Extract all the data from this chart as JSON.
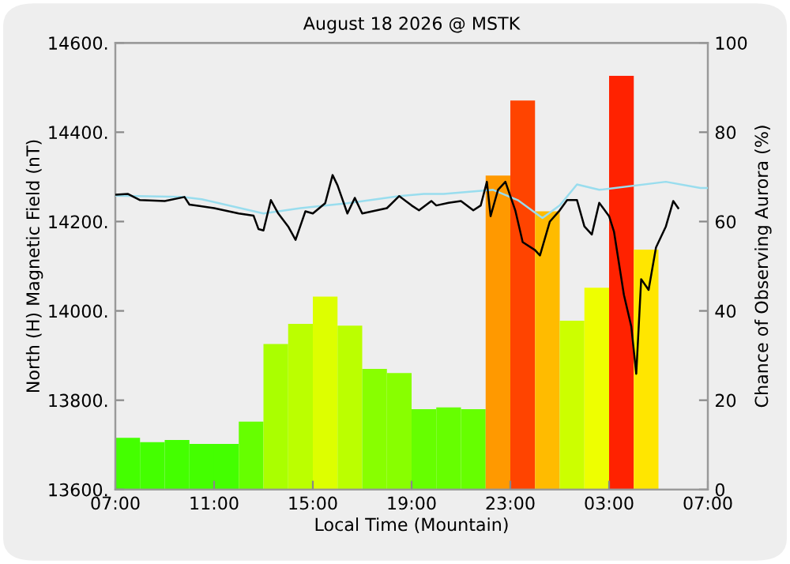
{
  "chart_data": {
    "type": "line",
    "title": "August 18 2026 @ MSTK",
    "xlabel": "Local Time (Mountain)",
    "ylabel": "North (H) Magnetic Field (nT)",
    "y2label": "Chance of Observing Aurora (%)",
    "xlim": [
      "2026-08-18T07:00",
      "2026-08-19T07:00"
    ],
    "xticks": [
      {
        "value": "2026-08-18T07:00",
        "label": "07:00"
      },
      {
        "value": "2026-08-18T11:00",
        "label": "11:00"
      },
      {
        "value": "2026-08-18T15:00",
        "label": "15:00"
      },
      {
        "value": "2026-08-18T19:00",
        "label": "19:00"
      },
      {
        "value": "2026-08-18T23:00",
        "label": "23:00"
      },
      {
        "value": "2026-08-19T03:00",
        "label": "03:00"
      },
      {
        "value": "2026-08-19T07:00",
        "label": "07:00"
      }
    ],
    "ylim": [
      13600,
      14600
    ],
    "yticks": [
      {
        "value": 13600,
        "label": "13600."
      },
      {
        "value": 13800,
        "label": "13800."
      },
      {
        "value": 14000,
        "label": "14000."
      },
      {
        "value": 14200,
        "label": "14200."
      },
      {
        "value": 14400,
        "label": "14400."
      },
      {
        "value": 14600,
        "label": "14600."
      }
    ],
    "y2lim": [
      0,
      100
    ],
    "y2ticks": [
      0,
      20,
      40,
      60,
      80,
      100
    ],
    "series": [
      {
        "type": "bar",
        "axis": "y2",
        "x": [
          "2026-08-18T07:30",
          "2026-08-18T08:30",
          "2026-08-18T09:30",
          "2026-08-18T10:30",
          "2026-08-18T11:30",
          "2026-08-18T12:30",
          "2026-08-18T13:30",
          "2026-08-18T14:30",
          "2026-08-18T15:30",
          "2026-08-18T16:30",
          "2026-08-18T17:30",
          "2026-08-18T18:30",
          "2026-08-18T19:30",
          "2026-08-18T20:30",
          "2026-08-18T21:30",
          "2026-08-18T22:30",
          "2026-08-18T23:30",
          "2026-08-19T00:30",
          "2026-08-19T01:30",
          "2026-08-19T02:30",
          "2026-08-19T03:30",
          "2026-08-19T04:30"
        ],
        "values": [
          11.6,
          10.6,
          11.1,
          10.2,
          10.2,
          15.2,
          32.6,
          37.1,
          43.2,
          36.7,
          27.0,
          26.1,
          18.0,
          18.4,
          18.0,
          70.3,
          87.1,
          62.3,
          37.8,
          45.2,
          92.6,
          53.7
        ],
        "colors": [
          "#44ff00",
          "#44ff00",
          "#44ff00",
          "#44ff00",
          "#44ff00",
          "#66ff00",
          "#aaff00",
          "#bbff00",
          "#ddff00",
          "#bbff00",
          "#88ff00",
          "#88ff00",
          "#66ff00",
          "#66ff00",
          "#66ff00",
          "#ff9900",
          "#ff4400",
          "#ffbb00",
          "#ccff00",
          "#eeff00",
          "#ff2200",
          "#ffe600"
        ]
      },
      {
        "axis": "y",
        "color": "#99ddee",
        "x": [
          "2026-08-18T07:00",
          "2026-08-18T09:42",
          "2026-08-18T10:30",
          "2026-08-18T13:00",
          "2026-08-18T14:30",
          "2026-08-18T16:24",
          "2026-08-18T18:30",
          "2026-08-18T19:30",
          "2026-08-18T20:18",
          "2026-08-18T22:18",
          "2026-08-18T23:18",
          "2026-08-19T00:18",
          "2026-08-19T01:00",
          "2026-08-19T01:42",
          "2026-08-19T02:36",
          "2026-08-19T05:18",
          "2026-08-19T06:42",
          "2026-08-19T07:00"
        ],
        "values": [
          14258,
          14255,
          14250,
          14218,
          14230,
          14241,
          14257,
          14262,
          14262,
          14271,
          14248,
          14208,
          14236,
          14283,
          14271,
          14289,
          14275,
          14275
        ]
      },
      {
        "axis": "y",
        "color": "#000000",
        "x": [
          "2026-08-18T07:00",
          "2026-08-18T07:30",
          "2026-08-18T08:00",
          "2026-08-18T09:00",
          "2026-08-18T09:48",
          "2026-08-18T10:00",
          "2026-08-18T11:00",
          "2026-08-18T12:00",
          "2026-08-18T12:36",
          "2026-08-18T12:48",
          "2026-08-18T13:00",
          "2026-08-18T13:18",
          "2026-08-18T13:36",
          "2026-08-18T14:00",
          "2026-08-18T14:18",
          "2026-08-18T14:42",
          "2026-08-18T15:00",
          "2026-08-18T15:30",
          "2026-08-18T15:48",
          "2026-08-18T16:00",
          "2026-08-18T16:24",
          "2026-08-18T16:42",
          "2026-08-18T17:00",
          "2026-08-18T18:00",
          "2026-08-18T18:30",
          "2026-08-18T19:00",
          "2026-08-18T19:18",
          "2026-08-18T19:48",
          "2026-08-18T20:00",
          "2026-08-18T20:30",
          "2026-08-18T21:00",
          "2026-08-18T21:30",
          "2026-08-18T21:48",
          "2026-08-18T22:03",
          "2026-08-18T22:12",
          "2026-08-18T22:30",
          "2026-08-18T22:48",
          "2026-08-18T23:12",
          "2026-08-18T23:30",
          "2026-08-19T00:00",
          "2026-08-19T00:12",
          "2026-08-19T00:36",
          "2026-08-19T01:00",
          "2026-08-19T01:18",
          "2026-08-19T01:42",
          "2026-08-19T02:00",
          "2026-08-19T02:18",
          "2026-08-19T02:36",
          "2026-08-19T03:00",
          "2026-08-19T03:12",
          "2026-08-19T03:36",
          "2026-08-19T03:54",
          "2026-08-19T04:06",
          "2026-08-19T04:18",
          "2026-08-19T04:36",
          "2026-08-19T04:54",
          "2026-08-19T05:18",
          "2026-08-19T05:36",
          "2026-08-19T05:48"
        ],
        "values": [
          14260,
          14262,
          14248,
          14246,
          14255,
          14238,
          14230,
          14218,
          14213,
          14183,
          14180,
          14248,
          14218,
          14189,
          14159,
          14223,
          14218,
          14241,
          14304,
          14281,
          14218,
          14253,
          14218,
          14230,
          14257,
          14236,
          14225,
          14246,
          14236,
          14242,
          14246,
          14225,
          14236,
          14289,
          14212,
          14271,
          14289,
          14225,
          14154,
          14136,
          14124,
          14200,
          14225,
          14248,
          14248,
          14189,
          14171,
          14242,
          14212,
          14177,
          14036,
          13965,
          13859,
          14071,
          14047,
          14142,
          14189,
          14246,
          14230
        ]
      }
    ]
  }
}
